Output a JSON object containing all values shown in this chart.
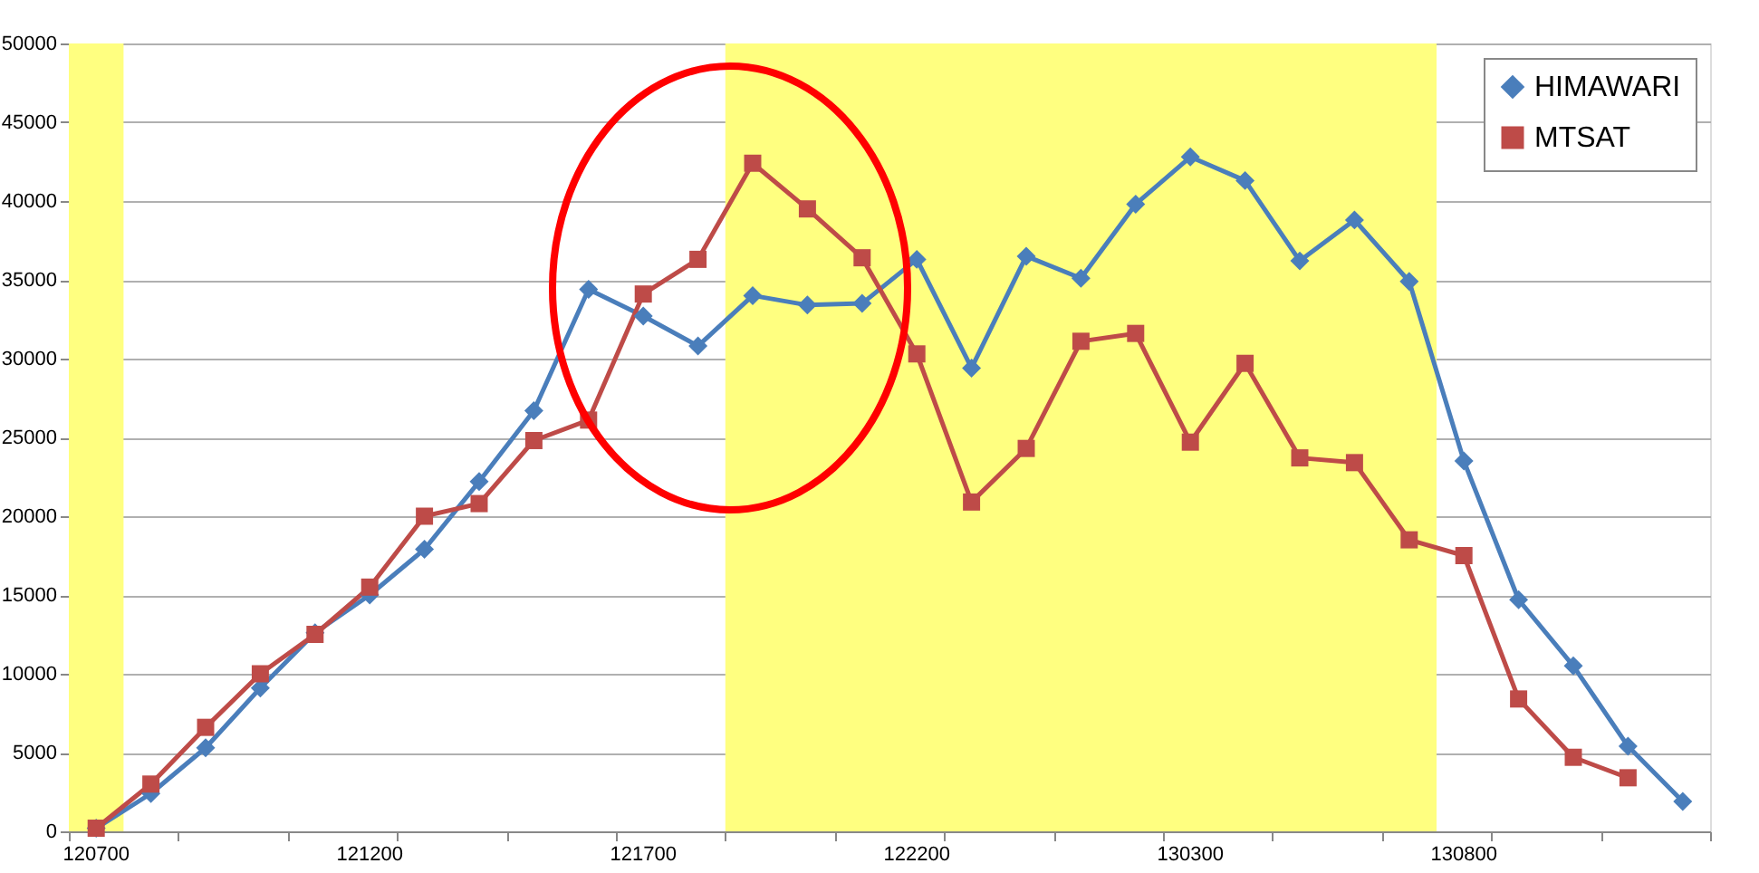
{
  "chart_data": {
    "type": "line",
    "categories": [
      "120700",
      null,
      null,
      null,
      null,
      "121200",
      null,
      null,
      null,
      null,
      "121700",
      null,
      null,
      null,
      null,
      "122200",
      null,
      null,
      null,
      null,
      "130300",
      null,
      null,
      null,
      null,
      "130800",
      null,
      null,
      null,
      null
    ],
    "series": [
      {
        "name": "HIMAWARI",
        "color": "#4a7ebb",
        "marker": "diamond",
        "values": [
          200,
          2400,
          5300,
          9100,
          12600,
          15000,
          17900,
          22200,
          26700,
          34400,
          32700,
          30800,
          34000,
          33400,
          33500,
          36300,
          29400,
          36500,
          35100,
          39800,
          42800,
          41300,
          36200,
          38800,
          34900,
          23500,
          14700,
          10500,
          5400,
          1900
        ]
      },
      {
        "name": "MTSAT",
        "color": "#be4b48",
        "marker": "square",
        "values": [
          200,
          3000,
          6600,
          10000,
          12500,
          15500,
          20000,
          20800,
          24800,
          26100,
          34100,
          36300,
          42400,
          39500,
          36400,
          30300,
          20900,
          24300,
          31100,
          31600,
          24700,
          29700,
          23700,
          23400,
          18500,
          17500,
          8400,
          4700,
          3400,
          null
        ]
      }
    ],
    "ylim": [
      0,
      50000
    ],
    "yticks": [
      0,
      5000,
      10000,
      15000,
      20000,
      25000,
      30000,
      35000,
      40000,
      45000,
      50000
    ],
    "bands": [
      {
        "axis": "x",
        "from": "120700",
        "to": "120700",
        "color": "#ffff80"
      }
    ],
    "grid": "y",
    "legend": "top right",
    "line_style": "solid"
  }
}
